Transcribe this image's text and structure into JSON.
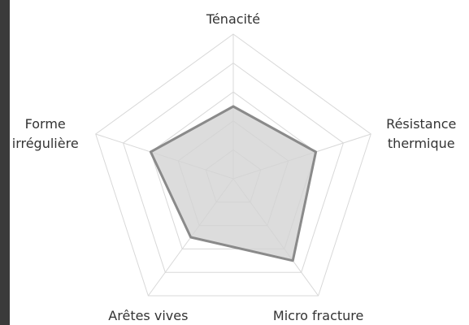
{
  "chart_data": {
    "type": "radar",
    "categories": [
      "Ténacité",
      "Résistance\nthermique",
      "Micro fracture",
      "Arêtes vives",
      "Forme\nirrégulière"
    ],
    "values": [
      2.5,
      3,
      3.5,
      2.5,
      3
    ],
    "color": "#8a8a8a",
    "fill": "#d3d3d3",
    "ylim": [
      0,
      5
    ],
    "yticks": [
      1,
      2,
      3,
      4,
      5
    ],
    "grid": true
  }
}
